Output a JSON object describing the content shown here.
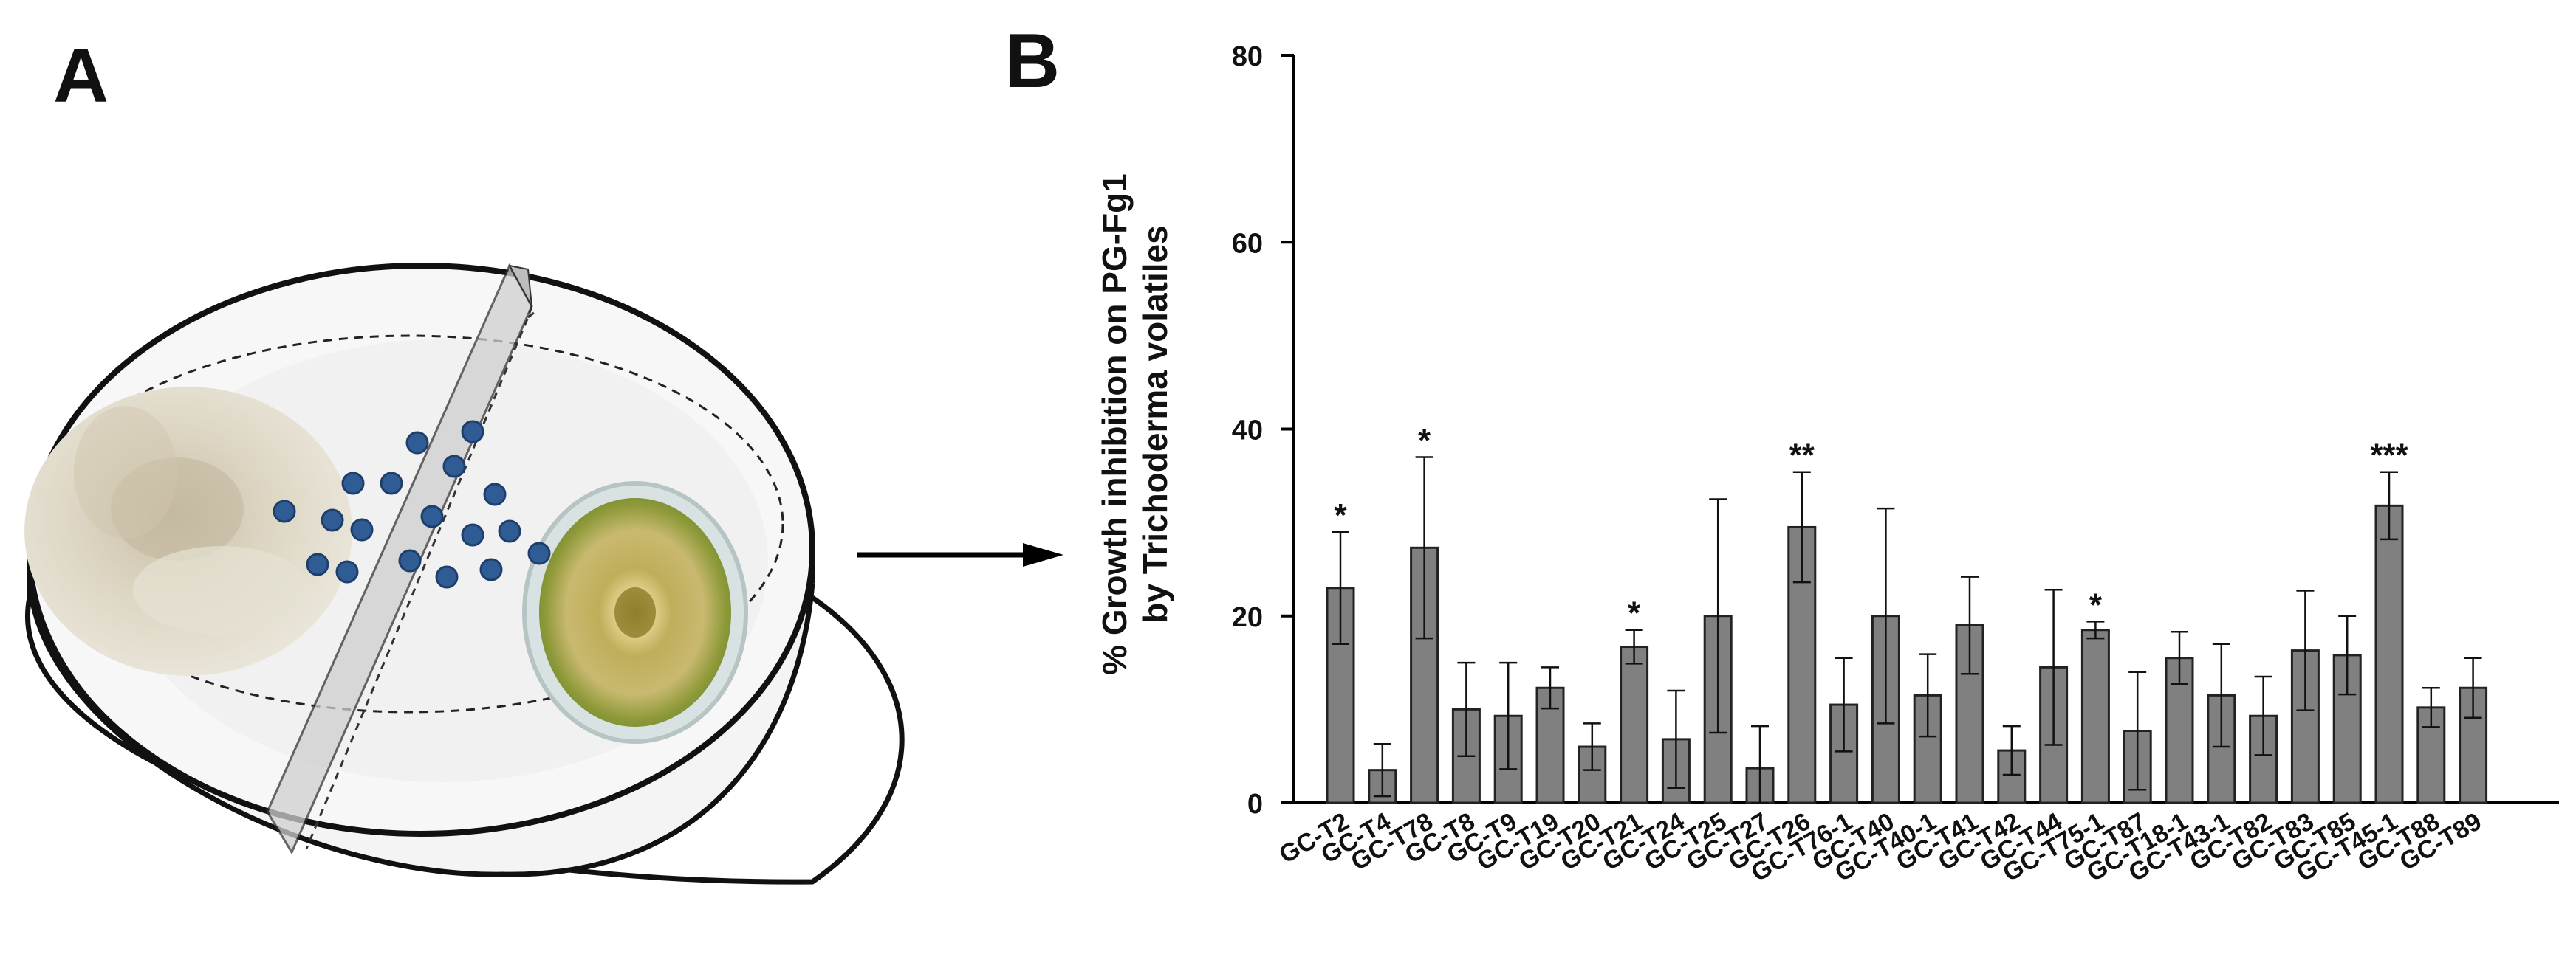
{
  "panel_a": {
    "label": "A",
    "diagram": "Petri dish with Trichoderma culture and pathogen culture separated by a partition, volatile compounds shown as blue dots",
    "colors": {
      "dot": "#2f5c95",
      "fungus_left": "#d9d3c0",
      "fungus_right": "#a7a03e"
    }
  },
  "panel_b": {
    "label": "B"
  },
  "chart_data": {
    "type": "bar",
    "title": "",
    "xlabel": "",
    "ylabel_line1": "% Growth inhibition on PG-Fg1",
    "ylabel_line2": "by Trichoderma volatiles",
    "ylim": [
      0,
      80
    ],
    "yticks": [
      "0",
      "20",
      "40",
      "60",
      "80"
    ],
    "categories": [
      "GC-T2",
      "GC-T4",
      "GC-T78",
      "GC-T8",
      "GC-T9",
      "GC-T19",
      "GC-T20",
      "GC-T21",
      "GC-T24",
      "GC-T25",
      "GC-T27",
      "GC-T26",
      "GC-T76-1",
      "GC-T40",
      "GC-T40-1",
      "GC-T41",
      "GC-T42",
      "GC-T44",
      "GC-T75-1",
      "GC-T87",
      "GC-T18-1",
      "GC-T43-1",
      "GC-T82",
      "GC-T83",
      "GC-T85",
      "GC-T45-1",
      "GC-T88",
      "GC-T89"
    ],
    "values": [
      23,
      3.5,
      27.3,
      10,
      9.3,
      12.3,
      6,
      16.7,
      6.8,
      20,
      3.7,
      29.5,
      10.5,
      20,
      11.5,
      19,
      5.6,
      14.5,
      18.5,
      7.7,
      15.5,
      11.5,
      9.3,
      16.3,
      15.8,
      31.8,
      10.2,
      12.3
    ],
    "errors": [
      6,
      2.8,
      9.7,
      5,
      5.7,
      2.2,
      2.5,
      1.8,
      5.2,
      12.5,
      4.5,
      5.9,
      5,
      11.5,
      4.4,
      5.2,
      2.6,
      8.3,
      0.9,
      6.3,
      2.8,
      5.5,
      4.2,
      6.4,
      4.2,
      3.6,
      2.1,
      3.2
    ],
    "significance": [
      "*",
      "",
      "*",
      "",
      "",
      "",
      "",
      "*",
      "",
      "",
      "",
      "**",
      "",
      "",
      "",
      "",
      "",
      "",
      "*",
      "",
      "",
      "",
      "",
      "",
      "",
      "***",
      "",
      ""
    ],
    "bar_color": "#808080",
    "grid": false,
    "legend": "none"
  }
}
